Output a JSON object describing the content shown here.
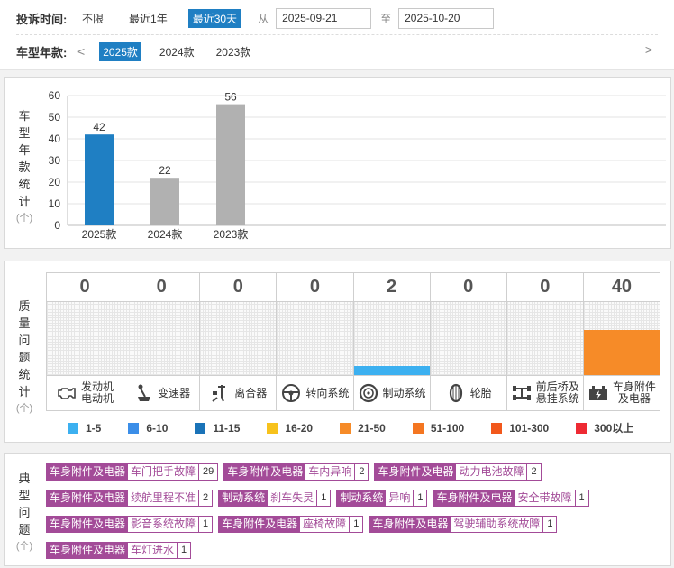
{
  "filters": {
    "time_label": "投诉时间:",
    "time_options": [
      "不限",
      "最近1年",
      "最近30天"
    ],
    "time_active": 2,
    "from_label": "从",
    "from_date": "2025-09-21",
    "to_label": "至",
    "to_date": "2025-10-20",
    "year_label": "车型年款:",
    "year_options": [
      "2025款",
      "2024款",
      "2023款"
    ],
    "year_active": 0,
    "prev_arrow": "<",
    "next_arrow": ">"
  },
  "year_stats": {
    "label_chars": [
      "车",
      "型",
      "年",
      "款",
      "统",
      "计"
    ],
    "unit": "(个)"
  },
  "chart_data": {
    "type": "bar",
    "categories": [
      "2025款",
      "2024款",
      "2023款"
    ],
    "values": [
      42,
      22,
      56
    ],
    "bar_colors": [
      "#1f7fc3",
      "#b1b1b1",
      "#b1b1b1"
    ],
    "ylim": [
      0,
      60
    ],
    "yticks": [
      0,
      10,
      20,
      30,
      40,
      50,
      60
    ],
    "grid": true
  },
  "quality": {
    "label_chars": [
      "质",
      "量",
      "问",
      "题",
      "统",
      "计"
    ],
    "unit": "(个)",
    "columns": [
      {
        "count": "0",
        "line1": "发动机",
        "line2": "电动机",
        "icon": "engine-icon",
        "fill": 0,
        "color": ""
      },
      {
        "count": "0",
        "line1": "变速器",
        "line2": "",
        "icon": "gearbox-icon",
        "fill": 0,
        "color": ""
      },
      {
        "count": "0",
        "line1": "离合器",
        "line2": "",
        "icon": "clutch-icon",
        "fill": 0,
        "color": ""
      },
      {
        "count": "0",
        "line1": "转向系统",
        "line2": "",
        "icon": "steering-wheel-icon",
        "fill": 0,
        "color": ""
      },
      {
        "count": "2",
        "line1": "制动系统",
        "line2": "",
        "icon": "brake-disc-icon",
        "fill": 0.12,
        "color": "#3cb0f0"
      },
      {
        "count": "0",
        "line1": "轮胎",
        "line2": "",
        "icon": "tire-icon",
        "fill": 0,
        "color": ""
      },
      {
        "count": "0",
        "line1": "前后桥及",
        "line2": "悬挂系统",
        "icon": "axle-icon",
        "fill": 0,
        "color": ""
      },
      {
        "count": "40",
        "line1": "车身附件",
        "line2": "及电器",
        "icon": "battery-icon",
        "fill": 0.62,
        "color": "#f68b28"
      }
    ],
    "legend": [
      {
        "label": "1-5",
        "color": "#3cb0f0"
      },
      {
        "label": "6-10",
        "color": "#3b8ee8"
      },
      {
        "label": "11-15",
        "color": "#1a73b8"
      },
      {
        "label": "16-20",
        "color": "#f7c21c"
      },
      {
        "label": "21-50",
        "color": "#f68b28"
      },
      {
        "label": "51-100",
        "color": "#f47621"
      },
      {
        "label": "101-300",
        "color": "#f2581c"
      },
      {
        "label": "300以上",
        "color": "#ee2a33"
      }
    ]
  },
  "typical": {
    "label_chars": [
      "典",
      "型",
      "问",
      "题"
    ],
    "unit": "(个)",
    "tags": [
      {
        "category": "车身附件及电器",
        "name": "车门把手故障",
        "count": "29"
      },
      {
        "category": "车身附件及电器",
        "name": "车内异响",
        "count": "2"
      },
      {
        "category": "车身附件及电器",
        "name": "动力电池故障",
        "count": "2"
      },
      {
        "category": "车身附件及电器",
        "name": "续航里程不准",
        "count": "2"
      },
      {
        "category": "制动系统",
        "name": "刹车失灵",
        "count": "1"
      },
      {
        "category": "制动系统",
        "name": "异响",
        "count": "1"
      },
      {
        "category": "车身附件及电器",
        "name": "安全带故障",
        "count": "1"
      },
      {
        "category": "车身附件及电器",
        "name": "影音系统故障",
        "count": "1"
      },
      {
        "category": "车身附件及电器",
        "name": "座椅故障",
        "count": "1"
      },
      {
        "category": "车身附件及电器",
        "name": "驾驶辅助系统故障",
        "count": "1"
      },
      {
        "category": "车身附件及电器",
        "name": "车灯进水",
        "count": "1"
      }
    ]
  }
}
